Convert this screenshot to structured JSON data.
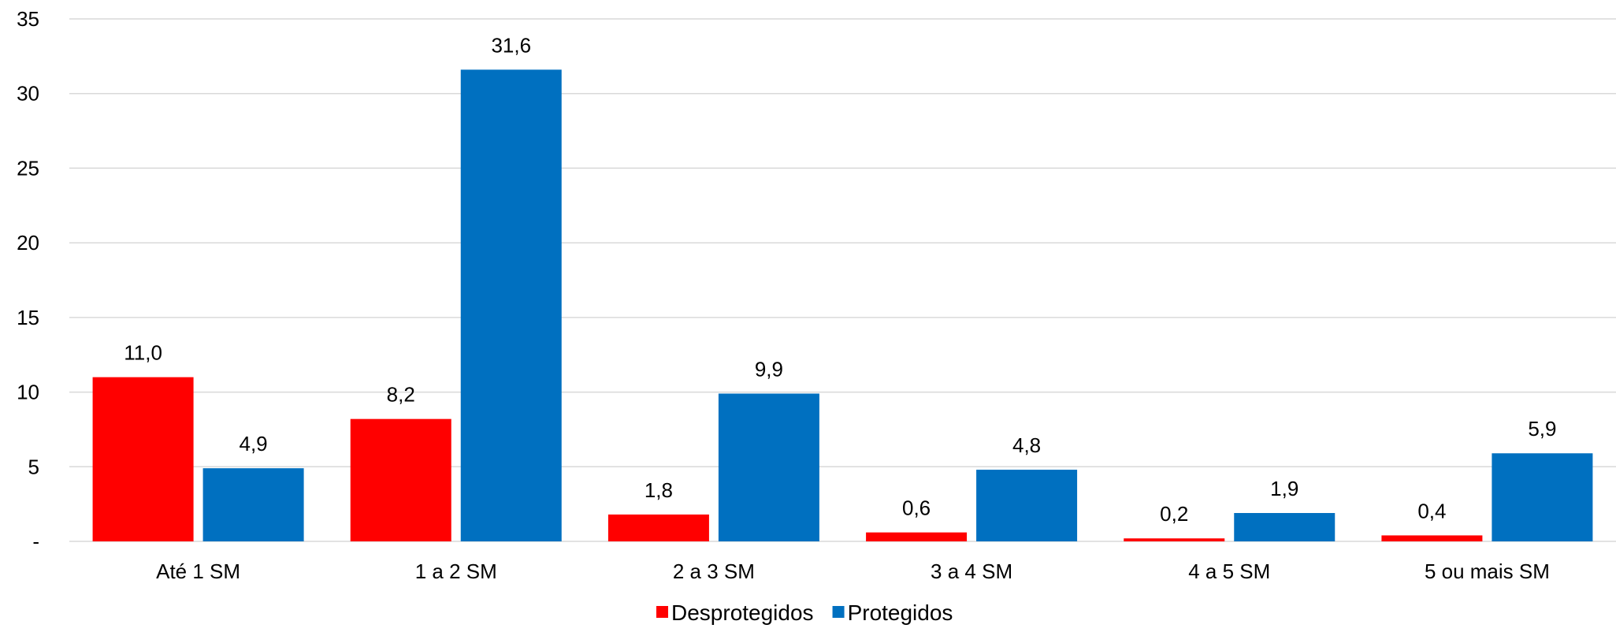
{
  "chart_data": {
    "type": "bar",
    "categories": [
      "Até 1 SM",
      "1 a 2 SM",
      "2 a 3 SM",
      "3 a 4 SM",
      "4 a 5 SM",
      "5 ou mais SM"
    ],
    "series": [
      {
        "name": "Desprotegidos",
        "color": "#ff0000",
        "values": [
          11.0,
          8.2,
          1.8,
          0.6,
          0.2,
          0.4
        ],
        "labels": [
          "11,0",
          "8,2",
          "1,8",
          "0,6",
          "0,2",
          "0,4"
        ]
      },
      {
        "name": "Protegidos",
        "color": "#0070c0",
        "values": [
          4.9,
          31.6,
          9.9,
          4.8,
          1.9,
          5.9
        ],
        "labels": [
          "4,9",
          "31,6",
          "9,9",
          "4,8",
          "1,9",
          "5,9"
        ]
      }
    ],
    "yticks": [
      0,
      5,
      10,
      15,
      20,
      25,
      30,
      35
    ],
    "ytick_labels": [
      "-",
      "5",
      "10",
      "15",
      "20",
      "25",
      "30",
      "35"
    ],
    "ylim": [
      0,
      35
    ],
    "grid": true,
    "legend_position": "bottom"
  }
}
